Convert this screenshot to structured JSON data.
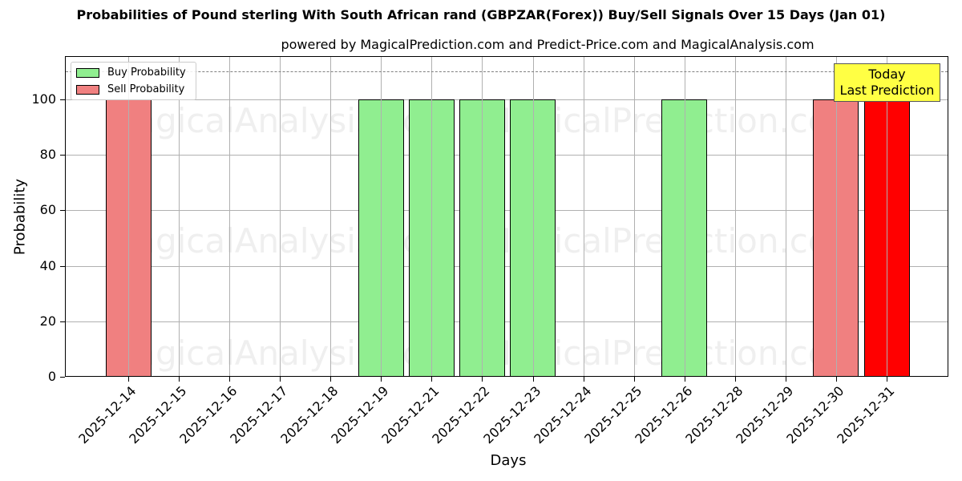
{
  "chart_data": {
    "type": "bar",
    "title": "Probabilities of Pound sterling With South African rand (GBPZAR(Forex)) Buy/Sell Signals Over 15 Days (Jan 01)",
    "subtitle": "powered by MagicalPrediction.com and Predict-Price.com and MagicalAnalysis.com",
    "xlabel": "Days",
    "ylabel": "Probability",
    "ylim": [
      0,
      115
    ],
    "yticks": [
      0,
      20,
      40,
      60,
      80,
      100
    ],
    "grid": true,
    "legend_position": "upper left",
    "categories": [
      "2025-12-14",
      "2025-12-15",
      "2025-12-16",
      "2025-12-17",
      "2025-12-18",
      "2025-12-19",
      "2025-12-21",
      "2025-12-22",
      "2025-12-23",
      "2025-12-24",
      "2025-12-25",
      "2025-12-26",
      "2025-12-28",
      "2025-12-29",
      "2025-12-30",
      "2025-12-31"
    ],
    "series": [
      {
        "name": "Buy Probability",
        "color": "#90ee90",
        "values": [
          0,
          0,
          0,
          0,
          0,
          100,
          100,
          100,
          100,
          0,
          0,
          100,
          0,
          0,
          0,
          0
        ]
      },
      {
        "name": "Sell Probability",
        "color": "#f08080",
        "values": [
          100,
          0,
          0,
          0,
          0,
          0,
          0,
          0,
          0,
          0,
          0,
          0,
          0,
          0,
          100,
          100
        ]
      }
    ],
    "highlight": {
      "category": "2025-12-31",
      "color": "#ff0000"
    },
    "reference_line": {
      "y": 110,
      "style": "dashed",
      "color": "#808080"
    },
    "annotations": [
      {
        "text": "Today\nLast Prediction",
        "line1": "Today",
        "line2": "Last Prediction",
        "background": "#ffff44"
      }
    ],
    "watermarks": [
      "MagicalAnalysis.com",
      "MagicalPrediction.com"
    ]
  }
}
